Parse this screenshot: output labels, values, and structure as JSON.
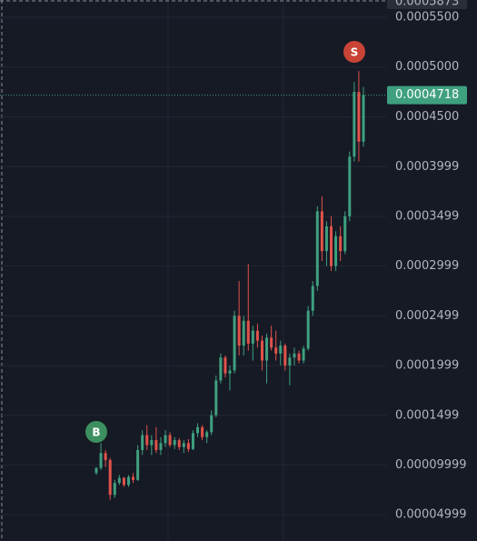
{
  "chart_data": {
    "type": "candlestick",
    "open": [
      9.2e-05,
      9.7e-05,
      0.000112,
      0.000105,
      7e-05,
      8.2e-05,
      8.7e-05,
      8e-05,
      8.8e-05,
      8.5e-05,
      0.000115,
      0.00013,
      0.00012,
      0.000125,
      0.000115,
      0.000122,
      0.00013,
      0.00012,
      0.000125,
      0.000118,
      0.000122,
      0.000116,
      0.000132,
      0.000138,
      0.000128,
      0.000133,
      0.00015,
      0.000185,
      0.000208,
      0.000192,
      0.000195,
      0.00025,
      0.00022,
      0.000245,
      0.000222,
      0.000235,
      0.000225,
      0.000205,
      0.000228,
      0.000218,
      0.000212,
      0.00022,
      0.0002,
      0.000208,
      0.000212,
      0.000205,
      0.000217,
      0.000255,
      0.00028,
      0.000355,
      0.000315,
      0.00034,
      0.0003,
      0.00033,
      0.000315,
      0.00035,
      0.00041,
      0.000475,
      0.000425
    ],
    "high": [
      9.8e-05,
      0.000122,
      0.000115,
      0.000107,
      8.5e-05,
      9e-05,
      8.8e-05,
      9e-05,
      9.2e-05,
      0.00012,
      0.000135,
      0.00014,
      0.00013,
      0.000138,
      0.000128,
      0.000135,
      0.000133,
      0.000128,
      0.000127,
      0.000125,
      0.000126,
      0.000135,
      0.000142,
      0.00014,
      0.000135,
      0.000155,
      0.00019,
      0.000212,
      0.00021,
      0.0002,
      0.000255,
      0.000285,
      0.00025,
      0.000302,
      0.00024,
      0.000242,
      0.00023,
      0.000232,
      0.00024,
      0.000235,
      0.000225,
      0.000222,
      0.000212,
      0.000218,
      0.000215,
      0.00022,
      0.00026,
      0.000285,
      0.00036,
      0.00037,
      0.000345,
      0.00035,
      0.000335,
      0.00034,
      0.000355,
      0.000415,
      0.000485,
      0.000496,
      0.00048
    ],
    "low": [
      9e-05,
      9.5e-05,
      9.8e-05,
      6.5e-05,
      6.7e-05,
      8e-05,
      7.8e-05,
      7.8e-05,
      8.2e-05,
      8.4e-05,
      0.00011,
      0.000115,
      0.00011,
      0.000112,
      0.00011,
      0.000118,
      0.000118,
      0.000116,
      0.000115,
      0.000112,
      0.000113,
      0.000115,
      0.000128,
      0.000125,
      0.000122,
      0.00013,
      0.000148,
      0.000182,
      0.000188,
      0.000175,
      0.000192,
      0.00021,
      0.00021,
      0.000215,
      0.000205,
      0.000218,
      0.000195,
      0.000182,
      0.000215,
      0.000205,
      0.0002,
      0.000195,
      0.00018,
      0.0002,
      0.000202,
      0.000202,
      0.000215,
      0.00025,
      0.000275,
      0.000305,
      0.0003,
      0.000295,
      0.000295,
      0.000305,
      0.000312,
      0.000345,
      0.000405,
      0.000405,
      0.00042
    ],
    "close": [
      9.7e-05,
      0.000112,
      0.000105,
      7e-05,
      8.2e-05,
      8.7e-05,
      8e-05,
      8.8e-05,
      8.5e-05,
      0.000115,
      0.00013,
      0.00012,
      0.000125,
      0.000115,
      0.000122,
      0.00013,
      0.00012,
      0.000125,
      0.000118,
      0.000122,
      0.000116,
      0.000132,
      0.000138,
      0.000128,
      0.000133,
      0.00015,
      0.000185,
      0.000208,
      0.000192,
      0.000195,
      0.00025,
      0.00022,
      0.000245,
      0.000222,
      0.000235,
      0.000225,
      0.000205,
      0.000228,
      0.000218,
      0.000212,
      0.00022,
      0.0002,
      0.000208,
      0.000212,
      0.000205,
      0.000217,
      0.000255,
      0.00028,
      0.000355,
      0.000315,
      0.00034,
      0.0003,
      0.00033,
      0.000315,
      0.00035,
      0.00041,
      0.000475,
      0.000425,
      0.0004718
    ],
    "up_color": "#3fa07f",
    "down_color": "#e0534a",
    "ylim": [
      2.36e-05,
      0.0005674
    ],
    "yticks": [
      {
        "value": 0.00055,
        "label": "0.0005500"
      },
      {
        "value": 0.0005,
        "label": "0.0005000"
      },
      {
        "value": 0.00045,
        "label": "0.0004500"
      },
      {
        "value": 0.0003999,
        "label": "0.0003999"
      },
      {
        "value": 0.0003499,
        "label": "0.0003499"
      },
      {
        "value": 0.0002999,
        "label": "0.0002999"
      },
      {
        "value": 0.0002499,
        "label": "0.0002499"
      },
      {
        "value": 0.0001999,
        "label": "0.0001999"
      },
      {
        "value": 0.0001499,
        "label": "0.0001499"
      },
      {
        "value": 9.999e-05,
        "label": "0.00009999"
      },
      {
        "value": 4.999e-05,
        "label": "0.00004999"
      }
    ],
    "grid": true,
    "current_price": 0.0004718,
    "crosshair_price": 0.0005873,
    "markers": [
      "B",
      "S"
    ]
  }
}
